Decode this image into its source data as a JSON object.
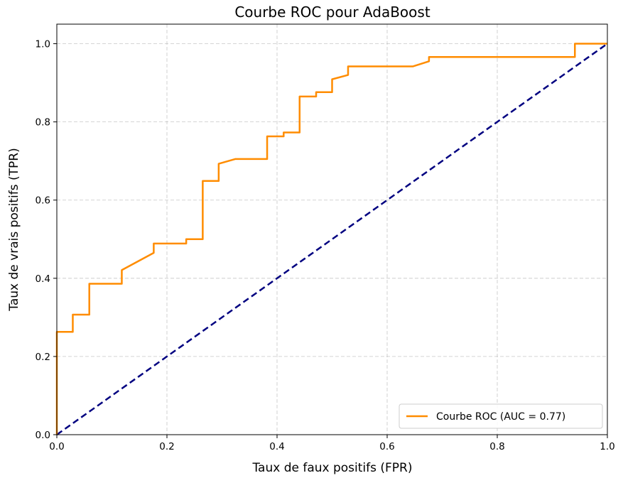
{
  "chart_data": {
    "type": "line",
    "title": "Courbe ROC pour AdaBoost",
    "xlabel": "Taux de faux positifs (FPR)",
    "ylabel": "Taux de vrais positifs (TPR)",
    "xlim": [
      0,
      1
    ],
    "ylim": [
      0,
      1.05
    ],
    "xticks": [
      0.0,
      0.2,
      0.4,
      0.6,
      0.8,
      1.0
    ],
    "yticks": [
      0.0,
      0.2,
      0.4,
      0.6,
      0.8,
      1.0
    ],
    "xtick_labels": [
      "0.0",
      "0.2",
      "0.4",
      "0.6",
      "0.8",
      "1.0"
    ],
    "ytick_labels": [
      "0.0",
      "0.2",
      "0.4",
      "0.6",
      "0.8",
      "1.0"
    ],
    "grid": true,
    "legend_position": "lower-right",
    "series": [
      {
        "name": "Courbe ROC (AUC = 0.77)",
        "color": "#ff8c00",
        "style": "solid",
        "x": [
          0.0,
          0.0,
          0.029,
          0.029,
          0.059,
          0.059,
          0.118,
          0.118,
          0.176,
          0.176,
          0.235,
          0.235,
          0.265,
          0.265,
          0.294,
          0.294,
          0.324,
          0.382,
          0.382,
          0.412,
          0.412,
          0.441,
          0.441,
          0.471,
          0.471,
          0.5,
          0.5,
          0.529,
          0.529,
          0.647,
          0.676,
          0.676,
          0.941,
          0.941,
          1.0
        ],
        "y": [
          0.0,
          0.263,
          0.263,
          0.307,
          0.307,
          0.386,
          0.386,
          0.421,
          0.465,
          0.489,
          0.489,
          0.5,
          0.5,
          0.649,
          0.649,
          0.693,
          0.705,
          0.705,
          0.763,
          0.763,
          0.773,
          0.773,
          0.865,
          0.865,
          0.876,
          0.876,
          0.909,
          0.92,
          0.942,
          0.942,
          0.955,
          0.966,
          0.966,
          1.0,
          1.0
        ]
      },
      {
        "name": "",
        "color": "#000080",
        "style": "dashed",
        "x": [
          0.0,
          1.0
        ],
        "y": [
          0.0,
          1.0
        ]
      }
    ]
  }
}
